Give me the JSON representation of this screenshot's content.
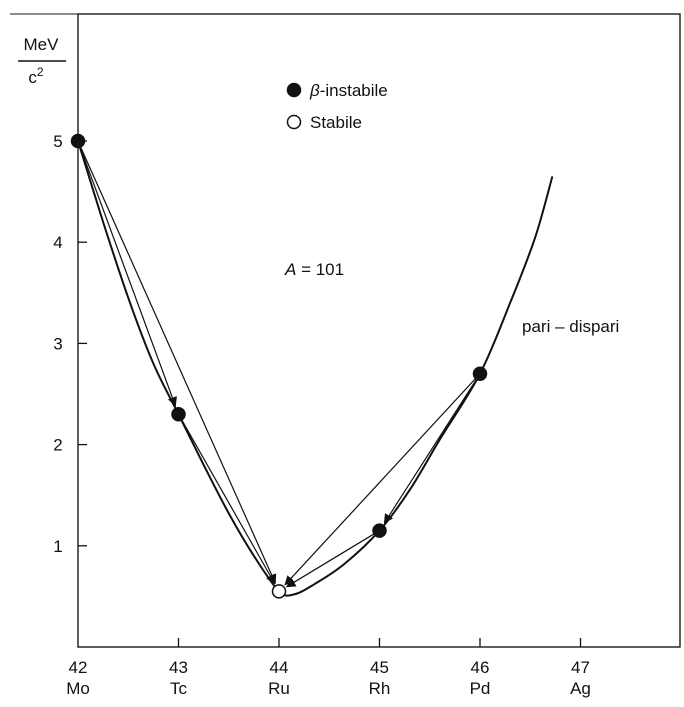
{
  "chart_data": {
    "type": "scatter",
    "y_unit": {
      "numerator": "MeV",
      "denominator": "c",
      "denominator_exponent": "2"
    },
    "ylim": [
      0,
      5.5
    ],
    "xlim": [
      42,
      47
    ],
    "y_ticks": [
      "1",
      "2",
      "3",
      "4",
      "5"
    ],
    "x_ticks": [
      {
        "z": "42",
        "symbol": "Mo"
      },
      {
        "z": "43",
        "symbol": "Tc"
      },
      {
        "z": "44",
        "symbol": "Ru"
      },
      {
        "z": "45",
        "symbol": "Rh"
      },
      {
        "z": "46",
        "symbol": "Pd"
      },
      {
        "z": "47",
        "symbol": "Ag"
      }
    ],
    "legend": {
      "placement": "top-center",
      "entries": [
        {
          "marker": "filled",
          "greek": "β",
          "text": "-instabile"
        },
        {
          "marker": "open",
          "greek": "",
          "text": "Stabile"
        }
      ]
    },
    "annotations": {
      "mass_number": {
        "italic": "A",
        "text": " = 101"
      },
      "curve_label": "pari – dispari"
    },
    "points": [
      {
        "z": 42,
        "symbol": "Mo",
        "y": 5.0,
        "status": "β-instabile"
      },
      {
        "z": 43,
        "symbol": "Tc",
        "y": 2.3,
        "status": "β-instabile"
      },
      {
        "z": 44,
        "symbol": "Ru",
        "y": 0.55,
        "status": "Stabile"
      },
      {
        "z": 45,
        "symbol": "Rh",
        "y": 1.15,
        "status": "β-instabile"
      },
      {
        "z": 46,
        "symbol": "Pd",
        "y": 2.7,
        "status": "β-instabile"
      }
    ],
    "curve": [
      [
        42.0,
        5.0
      ],
      [
        42.25,
        4.2
      ],
      [
        42.5,
        3.45
      ],
      [
        42.75,
        2.8
      ],
      [
        43.0,
        2.3
      ],
      [
        43.25,
        1.8
      ],
      [
        43.5,
        1.32
      ],
      [
        43.75,
        0.9
      ],
      [
        44.0,
        0.55
      ],
      [
        44.15,
        0.52
      ],
      [
        44.35,
        0.62
      ],
      [
        44.65,
        0.82
      ],
      [
        45.0,
        1.15
      ],
      [
        45.3,
        1.55
      ],
      [
        45.6,
        2.05
      ],
      [
        46.0,
        2.7
      ],
      [
        46.3,
        3.4
      ],
      [
        46.55,
        4.05
      ],
      [
        46.72,
        4.65
      ]
    ],
    "decay_arrows": [
      {
        "from": [
          42,
          5.0
        ],
        "to": [
          43,
          2.3
        ]
      },
      {
        "from": [
          42,
          5.0
        ],
        "to": [
          44,
          0.55
        ]
      },
      {
        "from": [
          43,
          2.3
        ],
        "to": [
          44,
          0.55
        ]
      },
      {
        "from": [
          46,
          2.7
        ],
        "to": [
          45,
          1.15
        ]
      },
      {
        "from": [
          46,
          2.7
        ],
        "to": [
          44,
          0.55
        ]
      },
      {
        "from": [
          45,
          1.15
        ],
        "to": [
          44,
          0.55
        ]
      }
    ]
  }
}
